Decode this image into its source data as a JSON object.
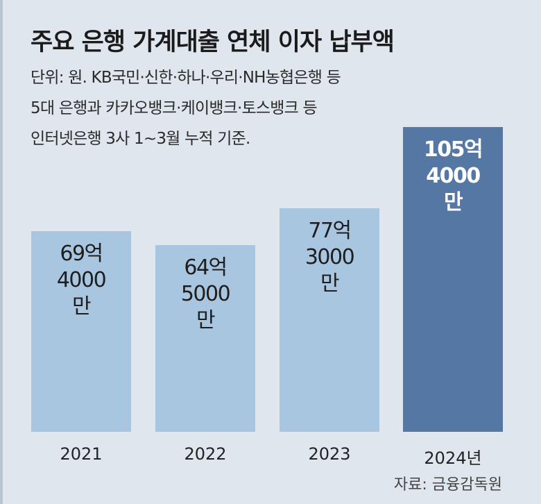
{
  "chart_data": {
    "type": "bar",
    "title": "주요 은행 가계대출 연체 이자 납부액",
    "subtitle": [
      "단위: 원. KB국민·신한·하나·우리·NH농협은행 등",
      "5대 은행과 카카오뱅크·케이뱅크·토스뱅크 등",
      "인터넷은행 3사 1~3월 누적 기준."
    ],
    "categories": [
      "2021",
      "2022",
      "2023",
      "2024년"
    ],
    "values": [
      6940000000,
      6450000000,
      7730000000,
      10540000000
    ],
    "value_labels": [
      "69억 4000만",
      "64억 5000만",
      "77억 3000만",
      "105억 4000만"
    ],
    "colors": [
      "#a9c6e0",
      "#a9c6e0",
      "#a9c6e0",
      "#5577a4"
    ],
    "label_colors": [
      "#1e1e1e",
      "#1e1e1e",
      "#1e1e1e",
      "#ffffff"
    ],
    "source": "자료: 금융감독원"
  }
}
